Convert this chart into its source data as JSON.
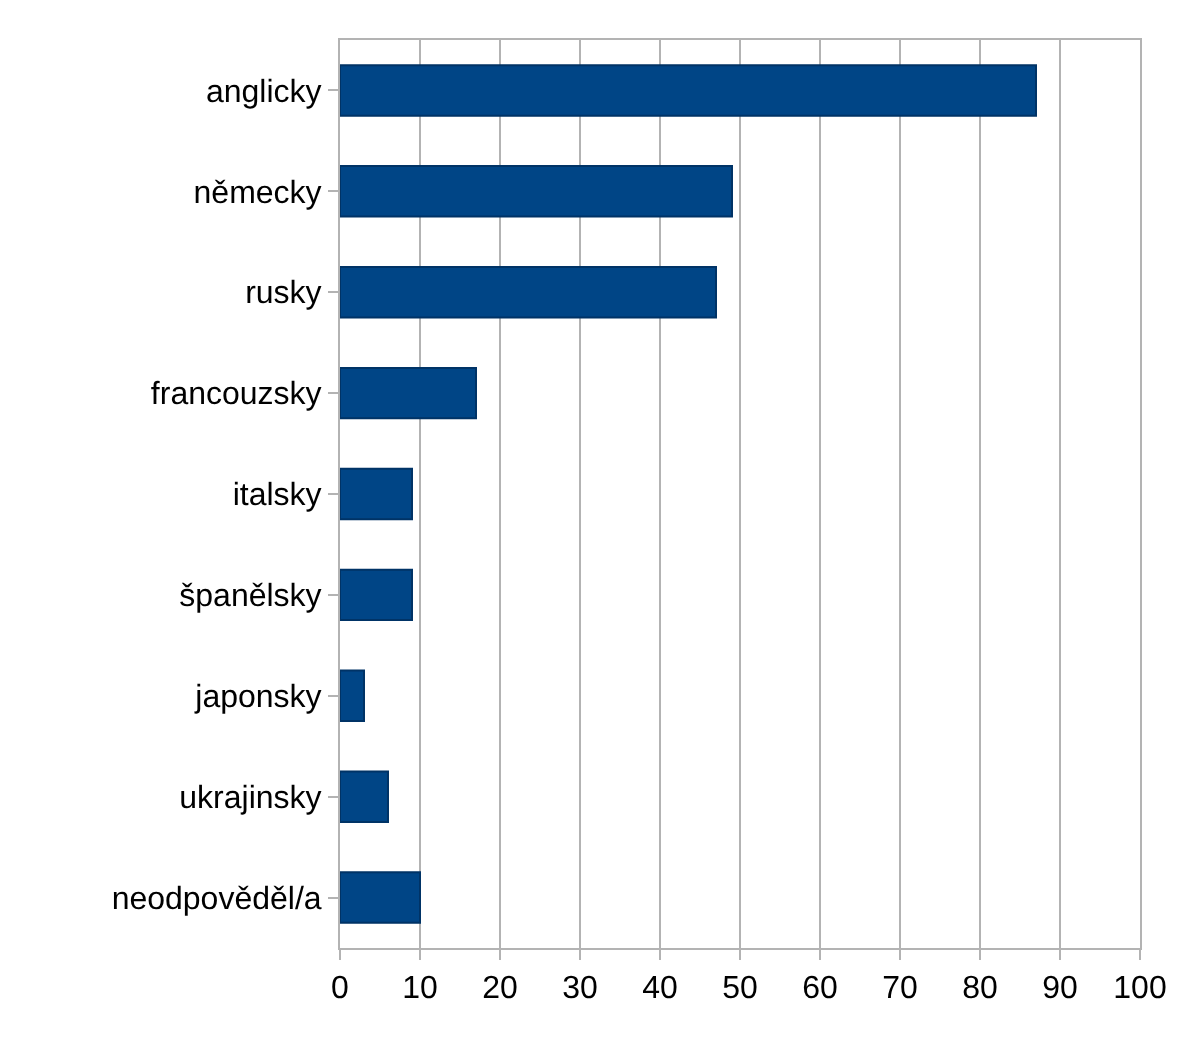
{
  "chart_data": {
    "type": "bar",
    "orientation": "horizontal",
    "categories": [
      "anglicky",
      "německy",
      "rusky",
      "francouzsky",
      "italsky",
      "španělsky",
      "japonsky",
      "ukrajinsky",
      "neodpověděl/a"
    ],
    "values": [
      87,
      49,
      47,
      17,
      9,
      9,
      3,
      6,
      10
    ],
    "color": "#004586",
    "xlim": [
      0,
      100
    ],
    "xticks": [
      0,
      10,
      20,
      30,
      40,
      50,
      60,
      70,
      80,
      90,
      100
    ],
    "grid": "x"
  }
}
